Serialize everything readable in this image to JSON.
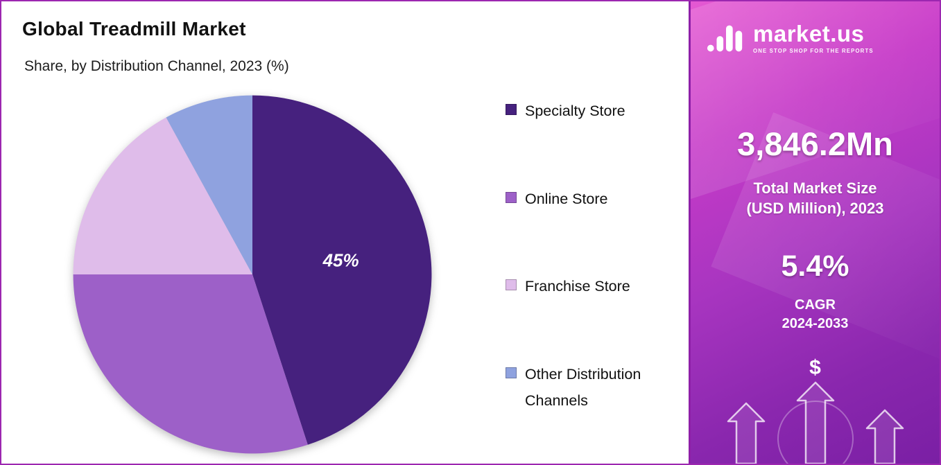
{
  "header": {
    "title": "Global Treadmill Market",
    "subtitle": "Share, by Distribution Channel, 2023 (%)"
  },
  "chart_data": {
    "type": "pie",
    "title": "Global Treadmill Market Share, by Distribution Channel, 2023 (%)",
    "start_angle_deg": 0,
    "direction": "clockwise",
    "legend_position": "right",
    "slices": [
      {
        "name": "Specialty Store",
        "value": 45,
        "color": "#46217E",
        "label": "45%"
      },
      {
        "name": "Online Store",
        "value": 30,
        "color": "#9D60C8",
        "label": ""
      },
      {
        "name": "Franchise Store",
        "value": 17,
        "color": "#DFBCEA",
        "label": ""
      },
      {
        "name": "Other Distribution Channels",
        "value": 8,
        "color": "#8FA2DF",
        "label": ""
      }
    ]
  },
  "side_panel": {
    "brand": {
      "name": "market.us",
      "tagline": "ONE STOP SHOP FOR THE REPORTS"
    },
    "market_size_value": "3,846.2Mn",
    "market_size_label_line1": "Total Market Size",
    "market_size_label_line2": "(USD Million), 2023",
    "cagr_value": "5.4%",
    "cagr_label_line1": "CAGR",
    "cagr_label_line2": "2024-2033",
    "dollar_symbol": "$",
    "colors": {
      "gradient_top": "#E559D2",
      "gradient_bottom": "#7A1FA4",
      "panel_border": "#8E1FA8",
      "frame_border": "#9C27B0"
    }
  }
}
